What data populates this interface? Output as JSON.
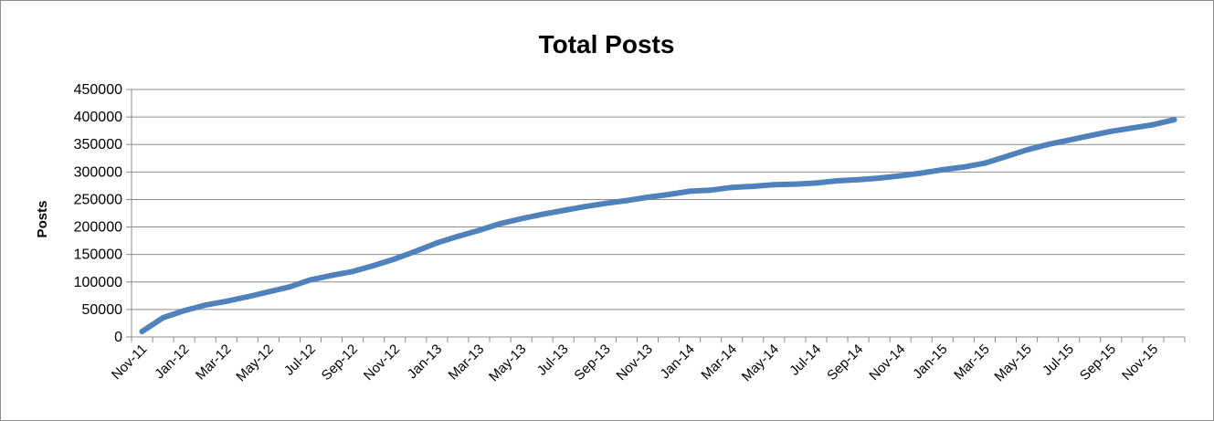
{
  "chart_data": {
    "type": "line",
    "title": "Total Posts",
    "xlabel": "",
    "ylabel": "Posts",
    "ylim": [
      0,
      450000
    ],
    "yticks": [
      0,
      50000,
      100000,
      150000,
      200000,
      250000,
      300000,
      350000,
      400000,
      450000
    ],
    "grid": true,
    "legend": "none",
    "x": [
      "Nov-11",
      "Dec-11",
      "Jan-12",
      "Feb-12",
      "Mar-12",
      "Apr-12",
      "May-12",
      "Jun-12",
      "Jul-12",
      "Aug-12",
      "Sep-12",
      "Oct-12",
      "Nov-12",
      "Dec-12",
      "Jan-13",
      "Feb-13",
      "Mar-13",
      "Apr-13",
      "May-13",
      "Jun-13",
      "Jul-13",
      "Aug-13",
      "Sep-13",
      "Oct-13",
      "Nov-13",
      "Dec-13",
      "Jan-14",
      "Feb-14",
      "Mar-14",
      "Apr-14",
      "May-14",
      "Jun-14",
      "Jul-14",
      "Aug-14",
      "Sep-14",
      "Oct-14",
      "Nov-14",
      "Dec-14",
      "Jan-15",
      "Feb-15",
      "Mar-15",
      "Apr-15",
      "May-15",
      "Jun-15",
      "Jul-15",
      "Aug-15",
      "Sep-15",
      "Oct-15",
      "Nov-15",
      "Dec-15"
    ],
    "xtick_labels": [
      "Nov-11",
      "Jan-12",
      "Mar-12",
      "May-12",
      "Jul-12",
      "Sep-12",
      "Nov-12",
      "Jan-13",
      "Mar-13",
      "May-13",
      "Jul-13",
      "Sep-13",
      "Nov-13",
      "Jan-14",
      "Mar-14",
      "May-14",
      "Jul-14",
      "Sep-14",
      "Nov-14",
      "Jan-15",
      "Mar-15",
      "May-15",
      "Jul-15",
      "Sep-15",
      "Nov-15"
    ],
    "series": [
      {
        "color": "#4f81bd",
        "values": [
          10000,
          35000,
          48000,
          58000,
          65000,
          73000,
          82000,
          91000,
          104000,
          112000,
          119000,
          130000,
          142000,
          156000,
          171000,
          183000,
          194000,
          206000,
          215000,
          223000,
          230000,
          237000,
          243000,
          248000,
          254000,
          259000,
          265000,
          267000,
          272000,
          274000,
          277000,
          278000,
          280000,
          284000,
          286000,
          289000,
          293000,
          298000,
          304000,
          309000,
          316000,
          328000,
          340000,
          350000,
          358000,
          366000,
          374000,
          380000,
          386000,
          395000
        ]
      }
    ]
  }
}
